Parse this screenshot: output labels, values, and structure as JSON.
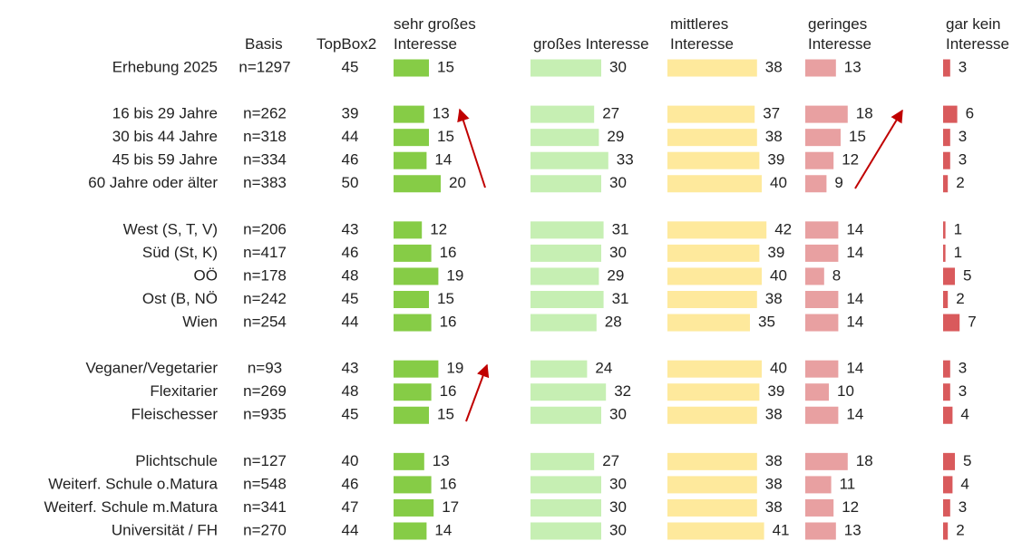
{
  "chart_data": {
    "type": "bar",
    "categories": [
      "Erhebung 2025",
      null,
      "16 bis 29 Jahre",
      "30 bis 44 Jahre",
      "45 bis 59 Jahre",
      "60 Jahre oder älter",
      null,
      "West (S, T, V)",
      "Süd (St, K)",
      "OÖ",
      "Ost (B, NÖ",
      "Wien",
      null,
      "Veganer/Vegetarier",
      "Flexitarier",
      "Fleischesser",
      null,
      "Plichtschule",
      "Weiterf. Schule o.Matura",
      "Weiterf. Schule m.Matura",
      "Universität / FH"
    ],
    "basis": {
      "name": "Basis",
      "values": [
        "n=1297",
        null,
        "n=262",
        "n=318",
        "n=334",
        "n=383",
        null,
        "n=206",
        "n=417",
        "n=178",
        "n=242",
        "n=254",
        null,
        "n=93",
        "n=269",
        "n=935",
        null,
        "n=127",
        "n=548",
        "n=341",
        "n=270"
      ]
    },
    "topbox2": {
      "name": "TopBox2",
      "values": [
        45,
        null,
        39,
        44,
        46,
        50,
        null,
        43,
        46,
        48,
        45,
        44,
        null,
        43,
        48,
        45,
        null,
        40,
        46,
        47,
        44
      ]
    },
    "series": [
      {
        "name": "sehr großes Interesse",
        "color": "#86cc46",
        "values": [
          15,
          null,
          13,
          15,
          14,
          20,
          null,
          12,
          16,
          19,
          15,
          16,
          null,
          19,
          16,
          15,
          null,
          13,
          16,
          17,
          14
        ]
      },
      {
        "name": "großes Interesse",
        "color": "#c6efb3",
        "values": [
          30,
          null,
          27,
          29,
          33,
          30,
          null,
          31,
          30,
          29,
          31,
          28,
          null,
          24,
          32,
          30,
          null,
          27,
          30,
          30,
          30
        ]
      },
      {
        "name": "mittleres Interesse",
        "color": "#fee99c",
        "values": [
          38,
          null,
          37,
          38,
          39,
          40,
          null,
          42,
          39,
          40,
          38,
          35,
          null,
          40,
          39,
          38,
          null,
          38,
          38,
          38,
          41
        ]
      },
      {
        "name": "geringes Interesse",
        "color": "#e8a0a1",
        "values": [
          13,
          null,
          18,
          15,
          12,
          9,
          null,
          14,
          14,
          8,
          14,
          14,
          null,
          14,
          10,
          14,
          null,
          18,
          11,
          12,
          13
        ]
      },
      {
        "name": "gar kein Interesse",
        "color": "#d95a5c",
        "values": [
          3,
          null,
          6,
          3,
          3,
          2,
          null,
          1,
          1,
          5,
          2,
          7,
          null,
          3,
          3,
          4,
          null,
          5,
          4,
          3,
          2
        ]
      }
    ]
  }
}
